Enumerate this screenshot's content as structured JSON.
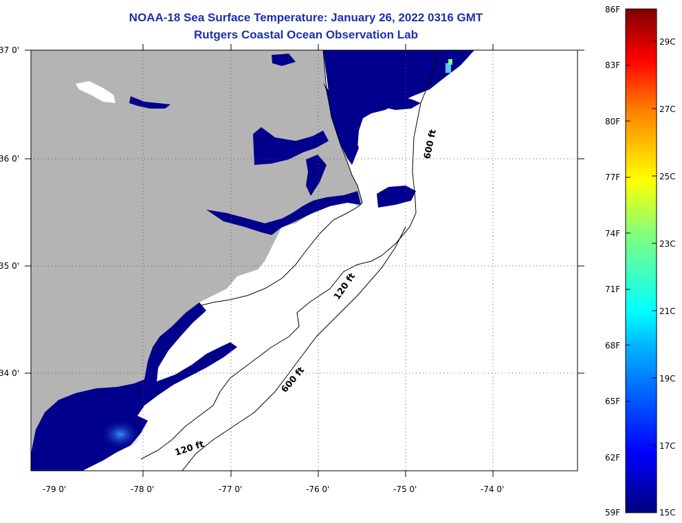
{
  "title_line1": "NOAA-18 Sea Surface Temperature:  January 26, 2022 0316 GMT",
  "title_line2": "Rutgers Coastal Ocean Observation Lab",
  "map": {
    "lat_labels": [
      "37 0'",
      "36 0'",
      "35 0'",
      "34 0'"
    ],
    "lon_labels": [
      "-79 0'",
      "-78 0'",
      "-77 0'",
      "-76 0'",
      "-75 0'",
      "-74 0'"
    ],
    "contour_labels": [
      "600 ft",
      "120 ft",
      "600 ft",
      "120 ft"
    ],
    "colors": {
      "land": "#b4b4b4",
      "cold_water": "#00008c",
      "cloud": "#ffffff"
    }
  },
  "colorbar": {
    "fahrenheit_labels": [
      "86F",
      "83F",
      "80F",
      "77F",
      "74F",
      "71F",
      "68F",
      "65F",
      "62F",
      "59F"
    ],
    "celsius_labels": [
      "29C",
      "27C",
      "25C",
      "23C",
      "21C",
      "19C",
      "17C",
      "15C"
    ]
  }
}
